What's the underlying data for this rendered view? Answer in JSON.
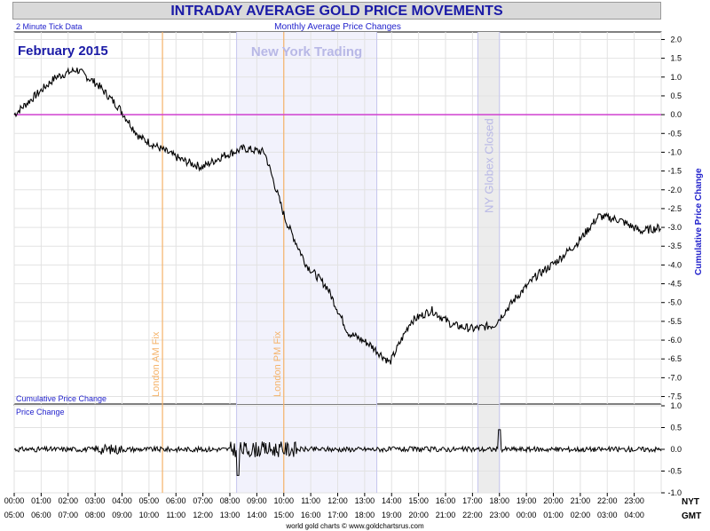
{
  "header": {
    "title": "INTRADAY AVERAGE GOLD PRICE MOVEMENTS",
    "subtitle": "Monthly Average Price Changes"
  },
  "chart_data": {
    "type": "line",
    "title": "INTRADAY AVERAGE GOLD PRICE MOVEMENTS",
    "subtitle": "Monthly Average Price Changes",
    "corner_note": "2 Minute Tick Data",
    "period_label": "February 2015",
    "main_panel": {
      "ylabel": "Cumulative Price Change",
      "bottom_label": "Cumulative Price Change",
      "ylim": [
        -7.7,
        2.2
      ],
      "yticks": [
        "2.0",
        "1.5",
        "1.0",
        "0.5",
        "0.0",
        "-0.5",
        "-1.0",
        "-1.5",
        "-2.0",
        "-2.5",
        "-3.0",
        "-3.5",
        "-4.0",
        "-4.5",
        "-5.0",
        "-5.5",
        "-6.0",
        "-6.5",
        "-7.0",
        "-7.5"
      ],
      "x_hours_nyt": [
        0,
        1,
        2,
        3,
        4,
        5,
        6,
        7,
        8,
        9,
        10,
        11,
        12,
        13,
        14,
        15,
        16,
        17,
        18,
        19,
        20,
        21,
        22,
        23
      ],
      "series": [
        {
          "values": [
            0,
            0.5,
            1.0,
            1.2,
            0.8,
            0.2,
            -0.6,
            -0.9,
            -1.2,
            -1.4,
            -1.1,
            -0.9,
            -1.0,
            -2.8,
            -4.0,
            -4.6,
            -5.8,
            -6.1,
            -6.6,
            -5.5,
            -5.2,
            -5.6,
            -5.7,
            -5.6,
            -4.9,
            -4.3,
            -3.9,
            -3.4,
            -2.7,
            -2.8,
            -3.1,
            -3.0
          ]
        }
      ],
      "zero_line_color": "#d040d0"
    },
    "sub_panel": {
      "title": "Price Change",
      "ylim": [
        -1.0,
        1.0
      ],
      "yticks": [
        "1.0",
        "0.5",
        "0.0",
        "-0.5",
        "-1.0"
      ]
    },
    "annotations": [
      {
        "label": "London AM Fix",
        "color": "#f5b36a"
      },
      {
        "label": "London PM Fix",
        "color": "#f5b36a"
      },
      {
        "label": "New York Trading",
        "color": "#b8b8e6"
      },
      {
        "label": "NY Globex Closed",
        "color": "#b8b8e6"
      }
    ],
    "x_axis": {
      "nyt_label": "NYT",
      "gmt_label": "GMT",
      "nyt_ticks": [
        "00:00",
        "01:00",
        "02:00",
        "03:00",
        "04:00",
        "05:00",
        "06:00",
        "07:00",
        "08:00",
        "09:00",
        "10:00",
        "11:00",
        "12:00",
        "13:00",
        "14:00",
        "15:00",
        "16:00",
        "17:00",
        "18:00",
        "19:00",
        "20:00",
        "21:00",
        "22:00",
        "23:00"
      ],
      "gmt_ticks": [
        "05:00",
        "06:00",
        "07:00",
        "08:00",
        "09:00",
        "10:00",
        "11:00",
        "12:00",
        "13:00",
        "14:00",
        "15:00",
        "16:00",
        "17:00",
        "18:00",
        "19:00",
        "20:00",
        "21:00",
        "22:00",
        "23:00",
        "00:00",
        "01:00",
        "02:00",
        "03:00",
        "04:00"
      ]
    },
    "footer": "world gold charts © www.goldchartsrus.com",
    "colors": {
      "line": "#000000",
      "text_blue": "#1a1aa6",
      "axis_blue": "#2222cc"
    }
  }
}
